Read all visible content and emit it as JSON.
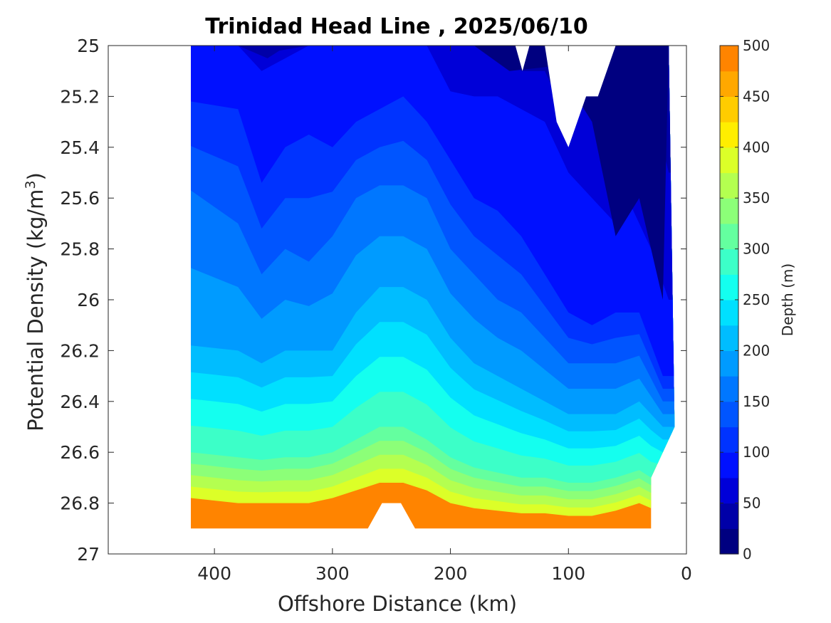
{
  "chart_data": {
    "type": "contour",
    "title": "Trinidad Head Line , 2025/06/10",
    "xlabel": "Offshore Distance (km)",
    "ylabel_main": "Potential Density (kg/m",
    "ylabel_sup": "3",
    "ylabel_close": ")",
    "colorbar_label": "Depth (m)",
    "x_reversed": true,
    "xlim": [
      0,
      490
    ],
    "ylim": [
      25,
      27
    ],
    "x_ticks": [
      400,
      300,
      200,
      100,
      0
    ],
    "y_ticks": [
      "25",
      "25.2",
      "25.4",
      "25.6",
      "25.8",
      "26",
      "26.2",
      "26.4",
      "26.6",
      "26.8",
      "27"
    ],
    "colorbar_ticks": [
      0,
      50,
      100,
      150,
      200,
      250,
      300,
      350,
      400,
      450,
      500
    ],
    "levels": [
      0,
      25,
      50,
      75,
      100,
      125,
      150,
      175,
      200,
      225,
      250,
      275,
      300,
      325,
      350,
      375,
      400,
      425,
      450,
      475,
      500
    ],
    "colormap": [
      "#000080",
      "#00009b",
      "#0000c8",
      "#0000f5",
      "#0022ff",
      "#004bff",
      "#0071ff",
      "#009bff",
      "#00c1ff",
      "#0aeaff",
      "#31ffe6",
      "#5bffbc",
      "#81ff96",
      "#aaff6d",
      "#d0ff47",
      "#f9ff1e",
      "#ffdc00",
      "#ffb600",
      "#ff8c00",
      "#ff6600",
      "#ff3c00",
      "#ff1600",
      "#eb0000",
      "#c10000",
      "#9c0000"
    ],
    "data_extent_x": [
      10,
      420
    ],
    "bottom_boundary_density": 26.9,
    "isopycnal_depth_contours": [
      {
        "depth": 25,
        "x": [
          420,
          380,
          355,
          348,
          330,
          300,
          270,
          250,
          230,
          210,
          190,
          170,
          160,
          150,
          140,
          125,
          110,
          100,
          80,
          60,
          50,
          30,
          15
        ],
        "y": [
          25.0,
          25.0,
          25.0,
          25.0,
          25.0,
          25.0,
          25.0,
          25.0,
          25.0,
          25.0,
          25.0,
          25.0,
          25.0,
          25.0,
          25.0,
          25.0,
          25.0,
          25.0,
          25.0,
          25.0,
          25.0,
          25.0,
          25.0
        ]
      },
      {
        "depth": 50,
        "x": [
          420,
          380,
          355,
          345,
          320,
          300,
          270,
          250,
          230,
          210,
          190,
          170,
          160,
          150,
          140,
          120,
          100,
          80,
          60,
          50,
          30,
          15
        ],
        "y": [
          25.0,
          25.0,
          25.05,
          25.02,
          25.0,
          25.0,
          25.0,
          25.0,
          25.0,
          25.0,
          25.0,
          25.0,
          25.0,
          25.05,
          25.1,
          25.1,
          25.3,
          25.2,
          25.0,
          25.0,
          25.2,
          25.5
        ]
      },
      {
        "depth": 75,
        "x": [
          420,
          380,
          360,
          340,
          320,
          300,
          280,
          260,
          240,
          220,
          200,
          180,
          160,
          140,
          120,
          100,
          80,
          60,
          50,
          30,
          15
        ],
        "y": [
          25.0,
          25.0,
          25.1,
          25.05,
          25.0,
          25.0,
          25.0,
          25.0,
          25.0,
          25.0,
          25.18,
          25.2,
          25.2,
          25.25,
          25.3,
          25.5,
          25.6,
          25.7,
          25.6,
          25.8,
          26.0
        ]
      },
      {
        "depth": 100,
        "x": [
          420,
          380,
          360,
          340,
          320,
          300,
          280,
          260,
          240,
          220,
          200,
          180,
          160,
          140,
          120,
          100,
          80,
          60,
          40,
          20
        ],
        "y": [
          25.22,
          25.25,
          25.54,
          25.4,
          25.35,
          25.4,
          25.3,
          25.25,
          25.2,
          25.3,
          25.45,
          25.6,
          25.65,
          25.75,
          25.9,
          26.05,
          26.1,
          26.05,
          26.05,
          26.3
        ]
      },
      {
        "depth": 150,
        "x": [
          420,
          380,
          360,
          340,
          320,
          300,
          280,
          260,
          240,
          220,
          200,
          180,
          160,
          140,
          120,
          100,
          80,
          60,
          40,
          20
        ],
        "y": [
          25.57,
          25.7,
          25.9,
          25.8,
          25.85,
          25.75,
          25.6,
          25.55,
          25.55,
          25.6,
          25.8,
          25.9,
          26.0,
          26.05,
          26.15,
          26.25,
          26.25,
          26.25,
          26.22,
          26.4
        ]
      },
      {
        "depth": 200,
        "x": [
          420,
          380,
          360,
          340,
          320,
          300,
          280,
          260,
          240,
          220,
          200,
          180,
          160,
          140,
          120,
          100,
          80,
          60,
          40,
          20
        ],
        "y": [
          26.18,
          26.2,
          26.25,
          26.2,
          26.2,
          26.2,
          26.05,
          25.95,
          25.95,
          26.0,
          26.15,
          26.25,
          26.3,
          26.35,
          26.4,
          26.45,
          26.45,
          26.45,
          26.4,
          26.5
        ]
      },
      {
        "depth": 300,
        "x": [
          420,
          380,
          360,
          340,
          320,
          300,
          280,
          260,
          240,
          220,
          200,
          180,
          160,
          140,
          120,
          100,
          80,
          60,
          40,
          30
        ],
        "y": [
          26.6,
          26.62,
          26.63,
          26.62,
          26.62,
          26.6,
          26.55,
          26.5,
          26.5,
          26.55,
          26.62,
          26.66,
          26.68,
          26.7,
          26.7,
          26.72,
          26.72,
          26.7,
          26.67,
          26.7
        ]
      },
      {
        "depth": 400,
        "x": [
          420,
          380,
          360,
          340,
          320,
          300,
          280,
          260,
          240,
          220,
          200,
          180,
          160,
          140,
          120,
          100,
          80,
          60,
          40,
          30
        ],
        "y": [
          26.78,
          26.8,
          26.8,
          26.8,
          26.8,
          26.78,
          26.75,
          26.72,
          26.72,
          26.75,
          26.8,
          26.82,
          26.83,
          26.84,
          26.84,
          26.85,
          26.85,
          26.83,
          26.8,
          26.82
        ]
      }
    ]
  }
}
